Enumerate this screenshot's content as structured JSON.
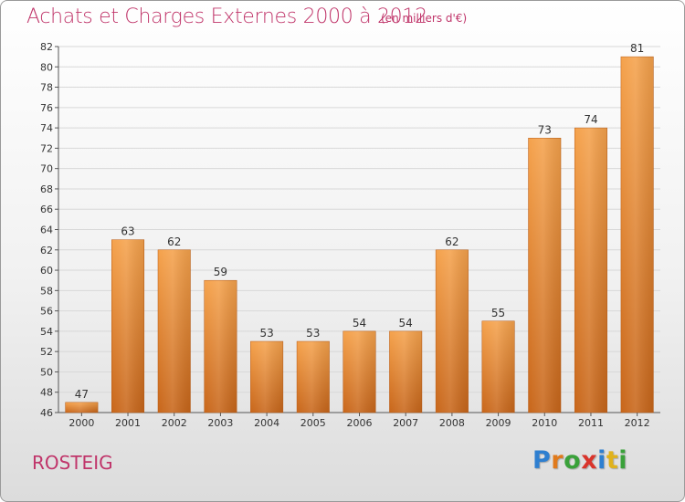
{
  "title": "Achats et Charges Externes 2000 à 2012",
  "subtitle": "(en milliers d'€)",
  "commune": "ROSTEIG",
  "logo": {
    "letters": [
      {
        "char": "P",
        "color": "#2e7fd0"
      },
      {
        "char": "r",
        "color": "#e07a1c"
      },
      {
        "char": "o",
        "color": "#3aa13a"
      },
      {
        "char": "x",
        "color": "#d9342b"
      },
      {
        "char": "i",
        "color": "#2e7fd0"
      },
      {
        "char": "t",
        "color": "#e0b21c"
      },
      {
        "char": "i",
        "color": "#3aa13a"
      }
    ]
  },
  "colors": {
    "title": "#c0356a",
    "bar_light": "#f5a24c",
    "bar_dark": "#c8661a",
    "grid": "#d8d8d8"
  },
  "chart_data": {
    "type": "bar",
    "categories": [
      "2000",
      "2001",
      "2002",
      "2003",
      "2004",
      "2005",
      "2006",
      "2007",
      "2008",
      "2009",
      "2010",
      "2011",
      "2012"
    ],
    "values": [
      47,
      63,
      62,
      59,
      53,
      53,
      54,
      54,
      62,
      55,
      73,
      74,
      81
    ],
    "ylim": [
      46,
      82
    ],
    "yticks": [
      46,
      48,
      50,
      52,
      54,
      56,
      58,
      60,
      62,
      64,
      66,
      68,
      70,
      72,
      74,
      76,
      78,
      80,
      82
    ],
    "grid": true,
    "data_labels": true
  }
}
